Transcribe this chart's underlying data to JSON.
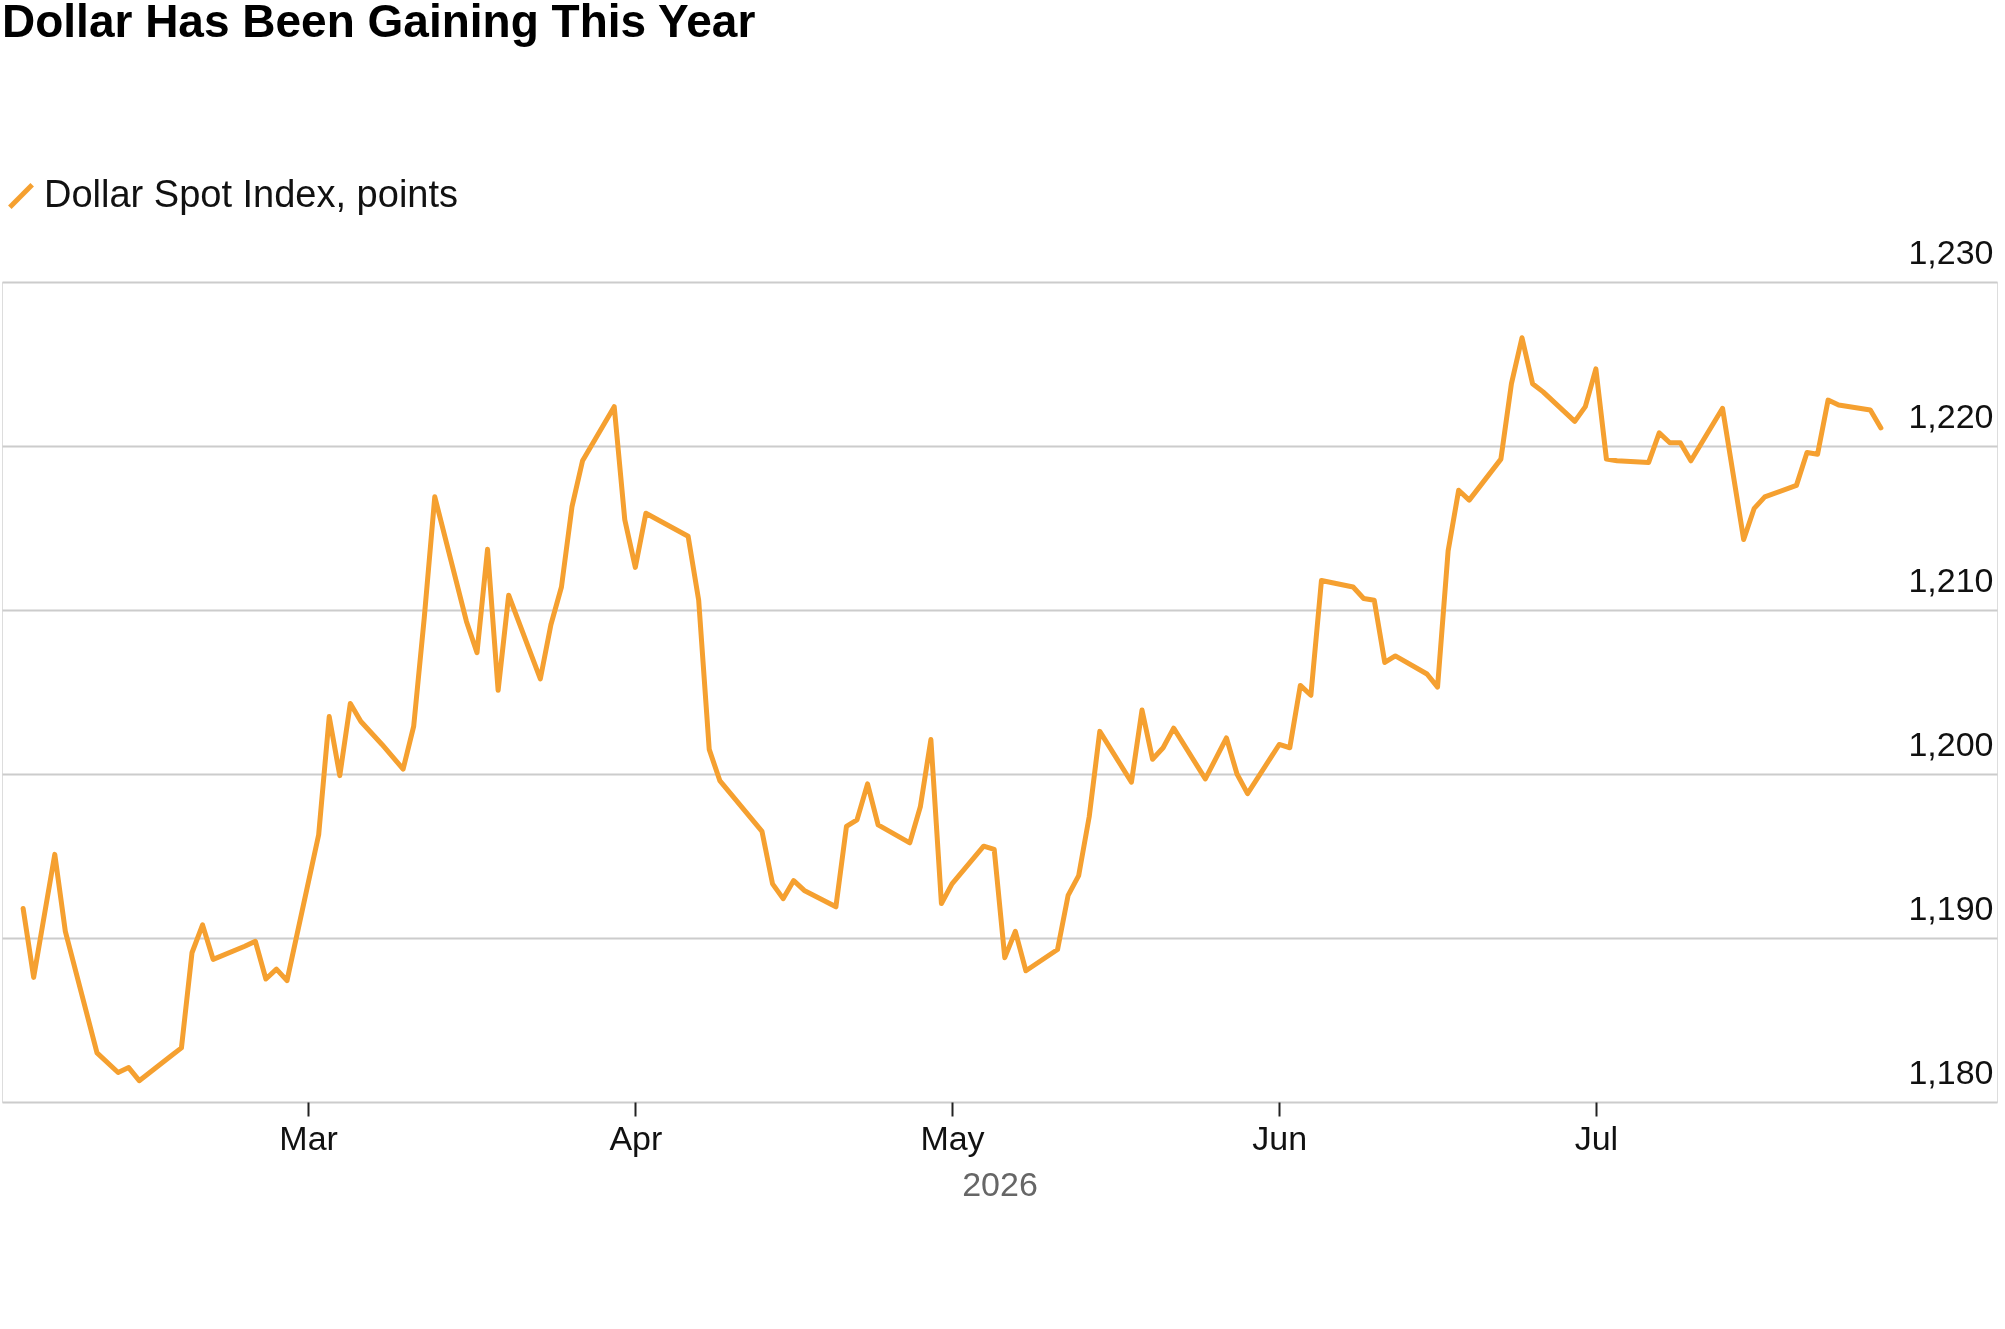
{
  "chart_data": {
    "type": "line",
    "title": "Dollar Has Been Gaining This Year",
    "xlabel": "2026",
    "x": [
      "2026-02-02",
      "2026-02-03",
      "2026-02-05",
      "2026-02-06",
      "2026-02-09",
      "2026-02-11",
      "2026-02-12",
      "2026-02-13",
      "2026-02-16",
      "2026-02-17",
      "2026-02-18",
      "2026-02-19",
      "2026-02-20",
      "2026-02-23",
      "2026-02-24",
      "2026-02-25",
      "2026-02-26",
      "2026-02-27",
      "2026-03-02",
      "2026-03-03",
      "2026-03-04",
      "2026-03-05",
      "2026-03-06",
      "2026-03-08",
      "2026-03-10",
      "2026-03-11",
      "2026-03-12",
      "2026-03-13",
      "2026-03-16",
      "2026-03-17",
      "2026-03-18",
      "2026-03-19",
      "2026-03-20",
      "2026-03-23",
      "2026-03-24",
      "2026-03-25",
      "2026-03-26",
      "2026-03-27",
      "2026-03-30",
      "2026-03-31",
      "2026-04-01",
      "2026-04-02",
      "2026-04-06",
      "2026-04-07",
      "2026-04-08",
      "2026-04-09",
      "2026-04-13",
      "2026-04-14",
      "2026-04-15",
      "2026-04-16",
      "2026-04-17",
      "2026-04-20",
      "2026-04-21",
      "2026-04-22",
      "2026-04-23",
      "2026-04-24",
      "2026-04-27",
      "2026-04-28",
      "2026-04-29",
      "2026-04-30",
      "2026-05-01",
      "2026-05-04",
      "2026-05-05",
      "2026-05-06",
      "2026-05-07",
      "2026-05-08",
      "2026-05-11",
      "2026-05-12",
      "2026-05-13",
      "2026-05-14",
      "2026-05-15",
      "2026-05-18",
      "2026-05-19",
      "2026-05-20",
      "2026-05-21",
      "2026-05-22",
      "2026-05-25",
      "2026-05-27",
      "2026-05-28",
      "2026-05-29",
      "2026-06-01",
      "2026-06-02",
      "2026-06-03",
      "2026-06-04",
      "2026-06-05",
      "2026-06-08",
      "2026-06-09",
      "2026-06-10",
      "2026-06-11",
      "2026-06-12",
      "2026-06-15",
      "2026-06-16",
      "2026-06-17",
      "2026-06-18",
      "2026-06-19",
      "2026-06-22",
      "2026-06-23",
      "2026-06-24",
      "2026-06-25",
      "2026-06-26",
      "2026-06-29",
      "2026-06-30",
      "2026-07-01",
      "2026-07-02",
      "2026-07-03",
      "2026-07-06",
      "2026-07-07",
      "2026-07-08",
      "2026-07-09",
      "2026-07-10",
      "2026-07-13",
      "2026-07-15",
      "2026-07-16",
      "2026-07-17",
      "2026-07-20",
      "2026-07-21",
      "2026-07-22",
      "2026-07-23",
      "2026-07-24",
      "2026-07-27",
      "2026-07-28"
    ],
    "series": [
      {
        "name": "Dollar Spot Index, points",
        "color": "#f5a030",
        "values": [
          1191.8,
          1187.6,
          1195.1,
          1190.4,
          1183.0,
          1181.8,
          1182.1,
          1181.3,
          1182.8,
          1183.3,
          1189.1,
          1190.8,
          1188.7,
          1189.5,
          1189.8,
          1187.5,
          1188.1,
          1187.4,
          1196.3,
          1203.5,
          1199.9,
          1204.3,
          1203.2,
          1201.8,
          1200.3,
          1202.9,
          1209.5,
          1216.9,
          1209.3,
          1207.4,
          1213.7,
          1205.1,
          1210.9,
          1205.8,
          1209.1,
          1211.4,
          1216.3,
          1219.1,
          1222.4,
          1215.5,
          1212.6,
          1215.9,
          1214.5,
          1210.6,
          1201.5,
          1199.6,
          1196.5,
          1193.3,
          1192.4,
          1193.5,
          1192.9,
          1191.9,
          1196.8,
          1197.2,
          1199.4,
          1196.9,
          1195.8,
          1198.0,
          1202.1,
          1192.1,
          1193.3,
          1195.6,
          1195.4,
          1188.8,
          1190.4,
          1188.0,
          1189.3,
          1192.6,
          1193.8,
          1197.4,
          1202.6,
          1199.5,
          1203.9,
          1200.9,
          1201.6,
          1202.8,
          1199.7,
          1202.2,
          1200.0,
          1198.8,
          1201.8,
          1201.6,
          1205.4,
          1204.8,
          1211.8,
          1211.4,
          1210.7,
          1210.6,
          1206.8,
          1207.2,
          1206.1,
          1205.3,
          1213.6,
          1217.3,
          1216.7,
          1219.2,
          1223.8,
          1226.6,
          1223.8,
          1223.3,
          1221.5,
          1222.4,
          1224.7,
          1219.2,
          1219.1,
          1219.0,
          1220.8,
          1220.2,
          1220.2,
          1219.1,
          1222.3,
          1214.3,
          1216.2,
          1216.9,
          1217.6,
          1219.6,
          1219.5,
          1222.8,
          1222.5,
          1222.2,
          1221.1
        ]
      }
    ],
    "xlim": [
      "2026-01-31",
      "2026-08-08"
    ],
    "xticks": [
      {
        "value": "2026-03-01",
        "label": "Mar"
      },
      {
        "value": "2026-04-01",
        "label": "Apr"
      },
      {
        "value": "2026-05-01",
        "label": "May"
      },
      {
        "value": "2026-06-01",
        "label": "Jun"
      },
      {
        "value": "2026-07-01",
        "label": "Jul"
      }
    ],
    "ylim": [
      1180,
      1230
    ],
    "yticks": [
      {
        "value": 1180,
        "label": "1,180"
      },
      {
        "value": 1190,
        "label": "1,190"
      },
      {
        "value": 1200,
        "label": "1,200"
      },
      {
        "value": 1210,
        "label": "1,210"
      },
      {
        "value": 1220,
        "label": "1,220"
      },
      {
        "value": 1230,
        "label": "1,230"
      }
    ],
    "grid": "y",
    "legend": "top left",
    "line_style": "solid",
    "marker": "none"
  }
}
